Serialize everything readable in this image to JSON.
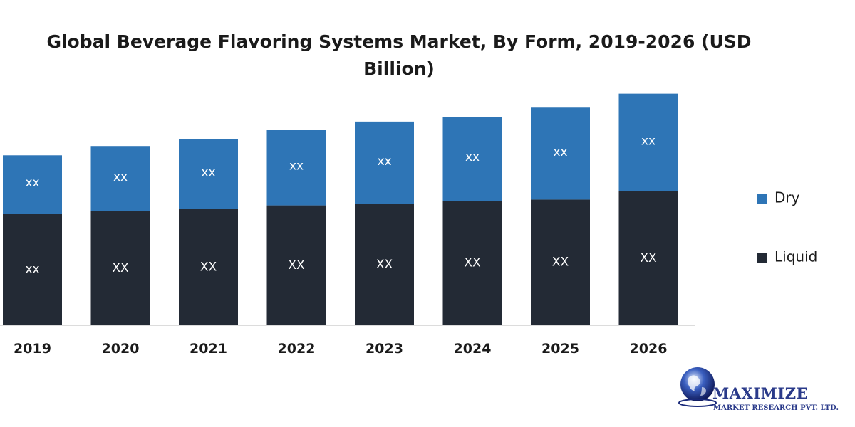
{
  "chart_data": {
    "type": "bar",
    "stacked": true,
    "title": "Global Beverage Flavoring Systems Market, By Form, 2019-2026 (USD Billion)",
    "categories": [
      "2019",
      "2020",
      "2021",
      "2022",
      "2023",
      "2024",
      "2025",
      "2026"
    ],
    "series": [
      {
        "name": "Liquid",
        "color": "#232a35",
        "values": [
          4.8,
          4.9,
          5.0,
          5.15,
          5.2,
          5.35,
          5.4,
          5.75
        ],
        "labels": [
          "xx",
          "XX",
          "XX",
          "XX",
          "XX",
          "XX",
          "XX",
          "XX"
        ]
      },
      {
        "name": "Dry",
        "color": "#2e75b6",
        "values": [
          2.5,
          2.8,
          3.0,
          3.25,
          3.55,
          3.6,
          3.95,
          4.2
        ],
        "labels": [
          "xx",
          "xx",
          "xx",
          "xx",
          "xx",
          "xx",
          "xx",
          "xx"
        ]
      }
    ],
    "xlabel": "",
    "ylabel": "",
    "ylim": [
      0,
      10
    ],
    "grid": false,
    "legend": [
      "Dry",
      "Liquid"
    ],
    "legend_position": "right"
  },
  "logo": {
    "name": "MAXIMIZE",
    "subtitle": "MARKET RESEARCH PVT. LTD."
  }
}
